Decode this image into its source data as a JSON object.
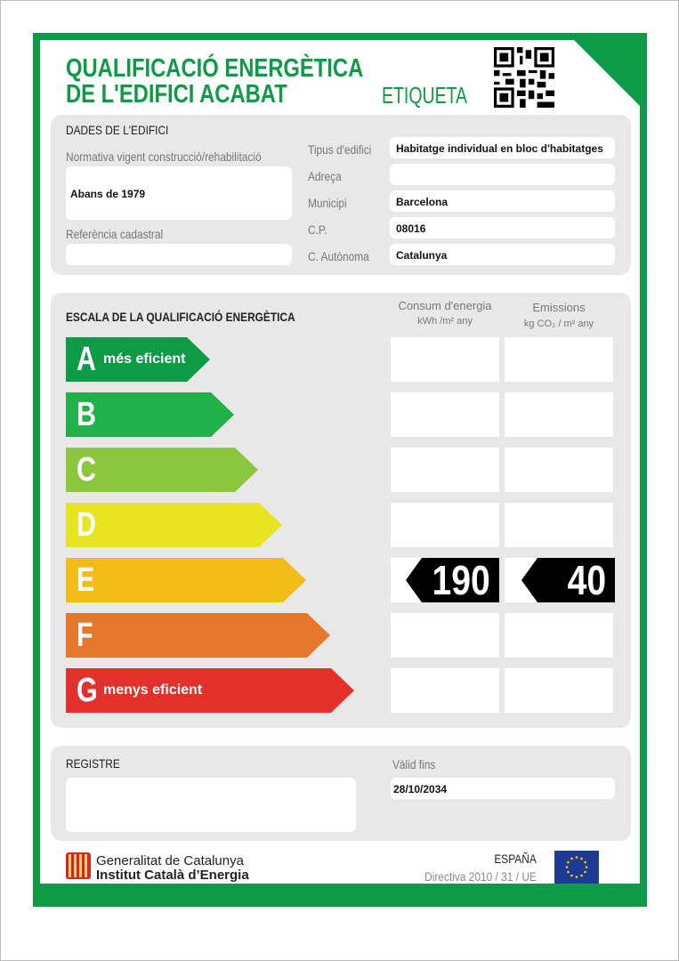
{
  "header": {
    "title_line1": "QUALIFICACIÓ ENERGÈTICA",
    "title_line2": "DE L'EDIFICI ACABAT",
    "label": "ETIQUETA",
    "qr_icon": "qr-code"
  },
  "building": {
    "section_title": "DADES DE L'EDIFICI",
    "regulation_label": "Normativa vigent construcció/rehabilitació",
    "regulation_value": "Abans de 1979",
    "cadastral_label": "Referència cadastral",
    "cadastral_value": "",
    "fields": [
      {
        "label": "Tipus d'edifici",
        "value": "Habitatge individual en bloc d'habitatges"
      },
      {
        "label": "Adreça",
        "value": ""
      },
      {
        "label": "Municipi",
        "value": "Barcelona"
      },
      {
        "label": "C.P.",
        "value": "08016"
      },
      {
        "label": "C. Autònoma",
        "value": "Catalunya"
      }
    ]
  },
  "scale": {
    "section_title": "ESCALA DE LA QUALIFICACIÓ ENERGÈTICA",
    "consumption_header": "Consum d'energia",
    "consumption_unit": "kWh /m² any",
    "emissions_header": "Emissions",
    "emissions_unit": "kg CO₂ / m² any",
    "classes": [
      {
        "letter": "A",
        "text": "més eficient",
        "color": "#0f9a48"
      },
      {
        "letter": "B",
        "text": "",
        "color": "#21b14b"
      },
      {
        "letter": "C",
        "text": "",
        "color": "#8cc63f"
      },
      {
        "letter": "D",
        "text": "",
        "color": "#e8e41f"
      },
      {
        "letter": "E",
        "text": "",
        "color": "#f3bb17"
      },
      {
        "letter": "F",
        "text": "",
        "color": "#e5782b"
      },
      {
        "letter": "G",
        "text": "menys eficient",
        "color": "#e4302a"
      }
    ],
    "rating": "E",
    "consumption_value": "190",
    "emissions_value": "40"
  },
  "register": {
    "label": "REGISTRE",
    "value": "",
    "valid_label": "Vàlid fins",
    "valid_value": "28/10/2034"
  },
  "footer": {
    "org_line1": "Generalitat de Catalunya",
    "org_line2": "Institut Català d’Energia",
    "country": "ESPAÑA",
    "directive": "Directiva 2010 / 31 / UE"
  },
  "colors": {
    "brand_green": "#0f9a48",
    "panel_gray": "#e8e8e8"
  }
}
